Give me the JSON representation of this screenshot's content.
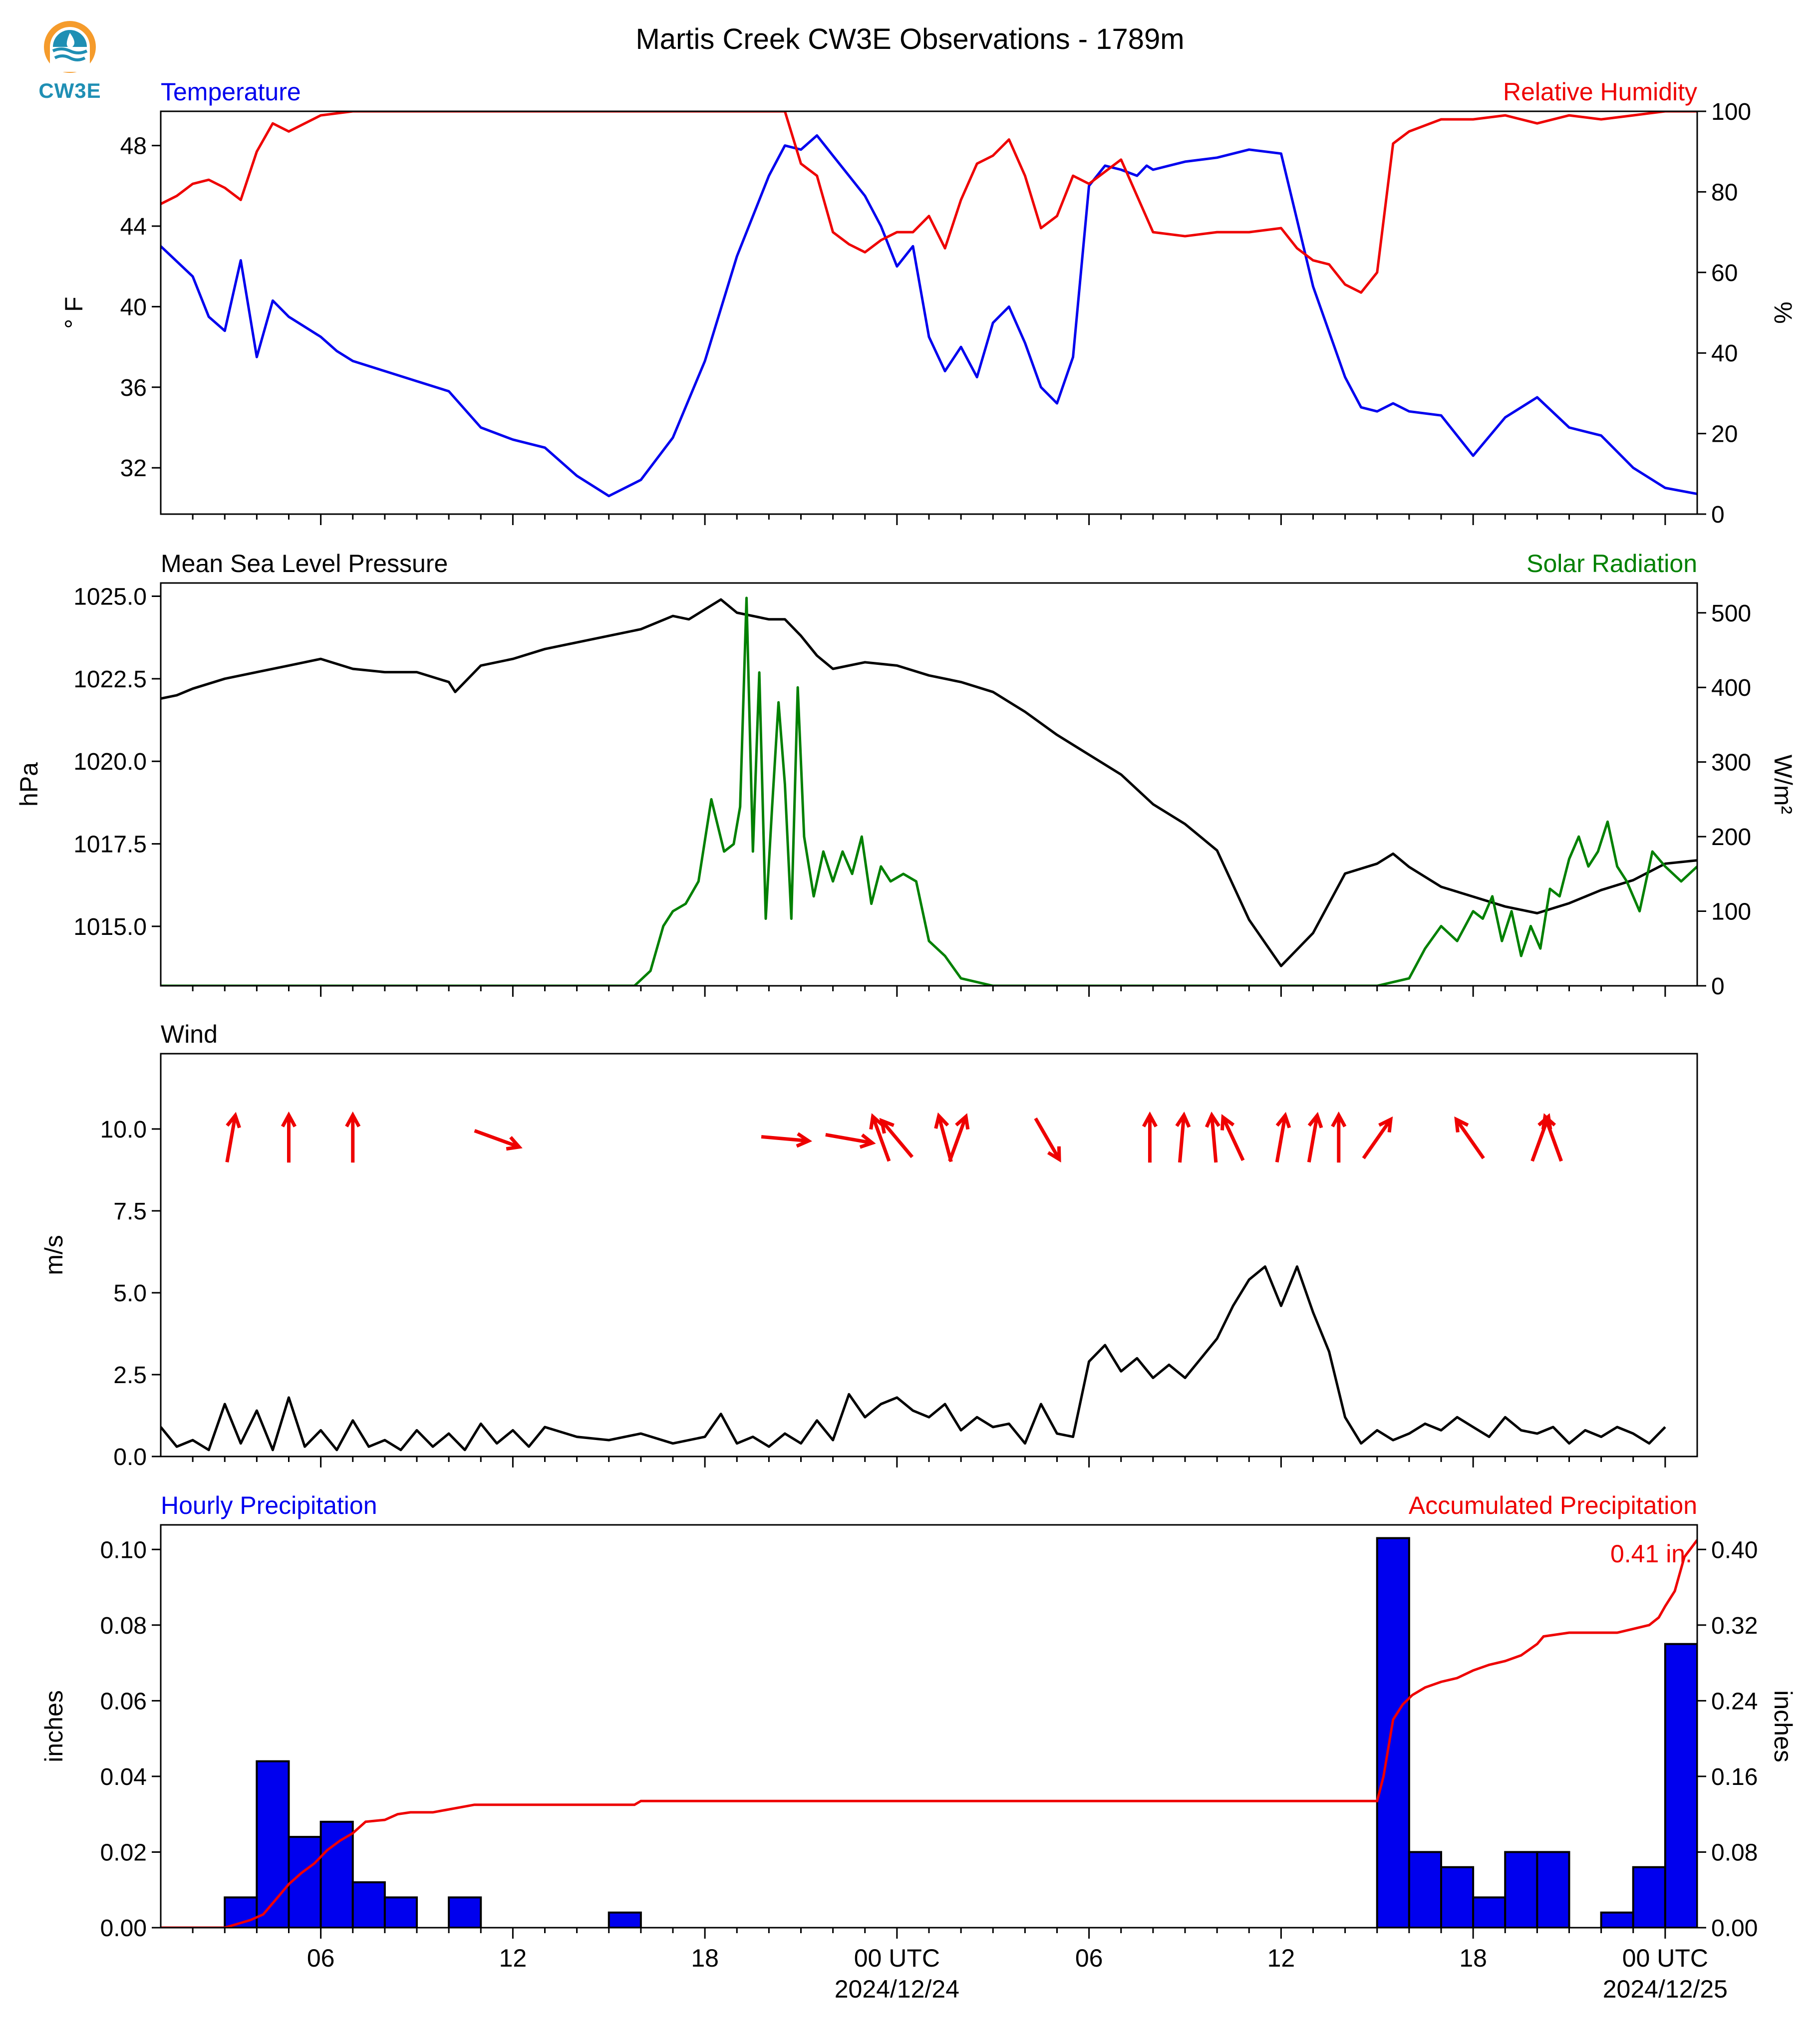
{
  "title": "Martis Creek CW3E Observations - 1789m",
  "logo": {
    "text": "CW3E",
    "ring_color": "#f59b2b",
    "drop_color": "#1f8fb4",
    "icon": "water-drop-logo-icon"
  },
  "time_axis": {
    "ticks": [
      {
        "h": 5,
        "label": "06",
        "date": ""
      },
      {
        "h": 11,
        "label": "12",
        "date": ""
      },
      {
        "h": 17,
        "label": "18",
        "date": ""
      },
      {
        "h": 23,
        "label": "00 UTC",
        "date": "2024/12/24"
      },
      {
        "h": 29,
        "label": "06",
        "date": ""
      },
      {
        "h": 35,
        "label": "12",
        "date": ""
      },
      {
        "h": 41,
        "label": "18",
        "date": ""
      },
      {
        "h": 47,
        "label": "00 UTC",
        "date": "2024/12/25"
      }
    ],
    "xlim_hours": [
      0,
      48
    ]
  },
  "chart_data": [
    {
      "type": "line",
      "panel": "temperature-humidity",
      "left_title": "Temperature",
      "right_title": "Relative Humidity",
      "ylabel_left": "° F",
      "ylabel_right": "%",
      "ylim_left": [
        29.7,
        49.7
      ],
      "ylim_right": [
        0,
        100
      ],
      "yticks_left": [
        "32",
        "36",
        "40",
        "44",
        "48"
      ],
      "yticks_right": [
        "0",
        "20",
        "40",
        "60",
        "80",
        "100"
      ],
      "colors": {
        "left": "#0000ee",
        "right": "#ee0000"
      },
      "series": [
        {
          "name": "Temperature",
          "axis": "left",
          "x": [
            0,
            1,
            1.5,
            2,
            2.5,
            3,
            3.5,
            4,
            4.5,
            5,
            5.5,
            6,
            7,
            8,
            9,
            10,
            11,
            12,
            13,
            14,
            15,
            16,
            17,
            18,
            19,
            19.5,
            20,
            20.5,
            21,
            21.5,
            22,
            22.5,
            23,
            23.5,
            24,
            24.5,
            25,
            25.5,
            26,
            26.5,
            27,
            27.5,
            28,
            28.5,
            29,
            29.5,
            30,
            30.5,
            30.8,
            31,
            31.5,
            32,
            33,
            34,
            35,
            36,
            37,
            37.5,
            38,
            38.5,
            39,
            40,
            41,
            42,
            43,
            44,
            45,
            46,
            47,
            48
          ],
          "values": [
            43,
            41.5,
            39.5,
            38.8,
            42.3,
            37.5,
            40.3,
            39.5,
            39,
            38.5,
            37.8,
            37.3,
            36.8,
            36.3,
            35.8,
            34,
            33.4,
            33,
            31.6,
            30.6,
            31.4,
            33.5,
            37.3,
            42.5,
            46.5,
            48,
            47.8,
            48.5,
            47.5,
            46.5,
            45.5,
            44,
            42,
            43,
            38.5,
            36.8,
            38,
            36.5,
            39.2,
            40,
            38.2,
            36,
            35.2,
            37.5,
            46,
            47,
            46.8,
            46.5,
            47,
            46.8,
            47,
            47.2,
            47.4,
            47.8,
            47.6,
            41,
            36.5,
            35,
            34.8,
            35.2,
            34.8,
            34.6,
            32.6,
            34.5,
            35.5,
            34,
            33.6,
            32,
            31,
            30.7
          ]
        },
        {
          "name": "Relative Humidity",
          "axis": "right",
          "x": [
            0,
            0.5,
            1,
            1.5,
            2,
            2.5,
            3,
            3.5,
            4,
            5,
            6,
            7,
            8,
            9,
            10,
            12,
            14,
            16,
            18,
            19.5,
            20,
            20.5,
            21,
            21.5,
            22,
            22.5,
            23,
            23.5,
            24,
            24.5,
            25,
            25.5,
            26,
            26.5,
            27,
            27.5,
            28,
            28.5,
            29,
            30,
            31,
            32,
            33,
            34,
            35,
            35.5,
            36,
            36.5,
            37,
            37.5,
            38,
            38.5,
            39,
            40,
            41,
            42,
            43,
            44,
            45,
            46,
            47,
            48
          ],
          "values": [
            77,
            79,
            82,
            83,
            81,
            78,
            90,
            97,
            95,
            99,
            100,
            100,
            100,
            100,
            100,
            100,
            100,
            100,
            100,
            100,
            87,
            84,
            70,
            67,
            65,
            68,
            70,
            70,
            74,
            66,
            78,
            87,
            89,
            93,
            84,
            71,
            74,
            84,
            82,
            88,
            70,
            69,
            70,
            70,
            71,
            66,
            63,
            62,
            57,
            55,
            60,
            92,
            95,
            98,
            98,
            99,
            97,
            99,
            98,
            99,
            100,
            100
          ]
        }
      ]
    },
    {
      "type": "line",
      "panel": "pressure-solar",
      "left_title": "Mean Sea Level Pressure",
      "right_title": "Solar Radiation",
      "ylabel_left": "hPa",
      "ylabel_right": "W/m²",
      "ylim_left": [
        1013.2,
        1025.4
      ],
      "ylim_right": [
        0,
        540
      ],
      "yticks_left": [
        "1015.0",
        "1017.5",
        "1020.0",
        "1022.5",
        "1025.0"
      ],
      "yticks_right": [
        "0",
        "100",
        "200",
        "300",
        "400",
        "500"
      ],
      "colors": {
        "left": "#000000",
        "right": "#008000"
      },
      "series": [
        {
          "name": "Mean Sea Level Pressure",
          "axis": "left",
          "x": [
            0,
            0.5,
            1,
            2,
            3,
            4,
            5,
            6,
            7,
            8,
            9,
            9.2,
            10,
            11,
            12,
            13,
            14,
            15,
            16,
            16.5,
            17,
            17.5,
            18,
            19,
            19.5,
            20,
            20.5,
            21,
            22,
            23,
            24,
            25,
            26,
            27,
            28,
            29,
            30,
            31,
            32,
            33,
            34,
            35,
            36,
            37,
            38,
            38.5,
            39,
            40,
            41,
            42,
            43,
            44,
            45,
            46,
            47,
            48
          ],
          "values": [
            1021.9,
            1022,
            1022.2,
            1022.5,
            1022.7,
            1022.9,
            1023.1,
            1022.8,
            1022.7,
            1022.7,
            1022.4,
            1022.1,
            1022.9,
            1023.1,
            1023.4,
            1023.6,
            1023.8,
            1024,
            1024.4,
            1024.3,
            1024.6,
            1024.9,
            1024.5,
            1024.3,
            1024.3,
            1023.8,
            1023.2,
            1022.8,
            1023,
            1022.9,
            1022.6,
            1022.4,
            1022.1,
            1021.5,
            1020.8,
            1020.2,
            1019.6,
            1018.7,
            1018.1,
            1017.3,
            1015.2,
            1013.8,
            1014.8,
            1016.6,
            1016.9,
            1017.2,
            1016.8,
            1016.2,
            1015.9,
            1015.6,
            1015.4,
            1015.7,
            1016.1,
            1016.4,
            1016.9,
            1017
          ]
        },
        {
          "name": "Solar Radiation",
          "axis": "right",
          "x": [
            0,
            14.8,
            15.3,
            15.7,
            16,
            16.4,
            16.8,
            17.2,
            17.6,
            17.9,
            18.1,
            18.3,
            18.5,
            18.7,
            18.9,
            19.1,
            19.3,
            19.5,
            19.7,
            19.9,
            20.1,
            20.4,
            20.7,
            21,
            21.3,
            21.6,
            21.9,
            22.2,
            22.5,
            22.8,
            23.2,
            23.6,
            24,
            24.5,
            25,
            26,
            30,
            38,
            39,
            39.5,
            40,
            40.5,
            41,
            41.3,
            41.6,
            41.9,
            42.2,
            42.5,
            42.8,
            43.1,
            43.4,
            43.7,
            44,
            44.3,
            44.6,
            44.9,
            45.2,
            45.5,
            45.8,
            46.2,
            46.6,
            47,
            47.5,
            48
          ],
          "values": [
            0,
            0,
            20,
            80,
            100,
            110,
            140,
            250,
            180,
            190,
            240,
            520,
            180,
            420,
            90,
            240,
            380,
            270,
            90,
            400,
            200,
            120,
            180,
            140,
            180,
            150,
            200,
            110,
            160,
            140,
            150,
            140,
            60,
            40,
            10,
            0,
            0,
            0,
            10,
            50,
            80,
            60,
            100,
            90,
            120,
            60,
            100,
            40,
            80,
            50,
            130,
            120,
            170,
            200,
            160,
            180,
            220,
            160,
            140,
            100,
            180,
            160,
            140,
            160
          ]
        }
      ]
    },
    {
      "type": "line",
      "panel": "wind",
      "left_title": "Wind",
      "ylabel_left": "m/s",
      "ylim_left": [
        0,
        12.3
      ],
      "yticks_left": [
        "0.0",
        "2.5",
        "5.0",
        "7.5",
        "10.0"
      ],
      "colors": {
        "left": "#000000",
        "arrows": "#ee0000"
      },
      "series": [
        {
          "name": "Wind speed",
          "axis": "left",
          "x": [
            0,
            0.5,
            1,
            1.5,
            2,
            2.5,
            3,
            3.5,
            4,
            4.5,
            5,
            5.5,
            6,
            6.5,
            7,
            7.5,
            8,
            8.5,
            9,
            9.5,
            10,
            10.5,
            11,
            11.5,
            12,
            13,
            14,
            15,
            16,
            17,
            17.5,
            18,
            18.5,
            19,
            19.5,
            20,
            20.5,
            21,
            21.5,
            22,
            22.5,
            23,
            23.5,
            24,
            24.5,
            25,
            25.5,
            26,
            26.5,
            27,
            27.5,
            28,
            28.5,
            29,
            29.5,
            30,
            30.5,
            31,
            31.5,
            32,
            32.5,
            33,
            33.5,
            34,
            34.5,
            35,
            35.5,
            36,
            36.5,
            37,
            37.5,
            38,
            38.5,
            39,
            39.5,
            40,
            40.5,
            41,
            41.5,
            42,
            42.5,
            43,
            43.5,
            44,
            44.5,
            45,
            45.5,
            46,
            46.5,
            47
          ],
          "values": [
            0.9,
            0.3,
            0.5,
            0.2,
            1.6,
            0.4,
            1.4,
            0.2,
            1.8,
            0.3,
            0.8,
            0.2,
            1.1,
            0.3,
            0.5,
            0.2,
            0.8,
            0.3,
            0.7,
            0.2,
            1,
            0.4,
            0.8,
            0.3,
            0.9,
            0.6,
            0.5,
            0.7,
            0.4,
            0.6,
            1.3,
            0.4,
            0.6,
            0.3,
            0.7,
            0.4,
            1.1,
            0.5,
            1.9,
            1.2,
            1.6,
            1.8,
            1.4,
            1.2,
            1.6,
            0.8,
            1.2,
            0.9,
            1,
            0.4,
            1.6,
            0.7,
            0.6,
            2.9,
            3.4,
            2.6,
            3,
            2.4,
            2.8,
            2.4,
            3,
            3.6,
            4.6,
            5.4,
            5.8,
            4.6,
            5.8,
            4.4,
            3.2,
            1.2,
            0.4,
            0.8,
            0.5,
            0.7,
            1,
            0.8,
            1.2,
            0.9,
            0.6,
            1.2,
            0.8,
            0.7,
            0.9,
            0.4,
            0.8,
            0.6,
            0.9,
            0.7,
            0.4,
            0.9
          ]
        }
      ],
      "wind_arrows": [
        {
          "h": 2.2,
          "dir": 190
        },
        {
          "h": 4.0,
          "dir": 180
        },
        {
          "h": 6.0,
          "dir": 180
        },
        {
          "h": 10.5,
          "dir": 290
        },
        {
          "h": 19.5,
          "dir": 275
        },
        {
          "h": 21.5,
          "dir": 280
        },
        {
          "h": 22.5,
          "dir": 160
        },
        {
          "h": 23.0,
          "dir": 140
        },
        {
          "h": 24.5,
          "dir": 165
        },
        {
          "h": 24.9,
          "dir": 200
        },
        {
          "h": 27.7,
          "dir": 330
        },
        {
          "h": 30.9,
          "dir": 180
        },
        {
          "h": 31.9,
          "dir": 185
        },
        {
          "h": 32.9,
          "dir": 175
        },
        {
          "h": 33.5,
          "dir": 155
        },
        {
          "h": 35.0,
          "dir": 190
        },
        {
          "h": 36.0,
          "dir": 190
        },
        {
          "h": 36.8,
          "dir": 180
        },
        {
          "h": 38.0,
          "dir": 215
        },
        {
          "h": 40.9,
          "dir": 145
        },
        {
          "h": 43.1,
          "dir": 200
        },
        {
          "h": 43.5,
          "dir": 160
        }
      ]
    },
    {
      "type": "bar",
      "panel": "precipitation",
      "left_title": "Hourly Precipitation",
      "right_title": "Accumulated Precipitation",
      "ylabel_left": "inches",
      "ylabel_right": "inches",
      "ylim_left": [
        0,
        0.1065
      ],
      "ylim_right": [
        0,
        0.426
      ],
      "yticks_left": [
        "0.00",
        "0.02",
        "0.04",
        "0.06",
        "0.08",
        "0.10"
      ],
      "yticks_right": [
        "0.00",
        "0.08",
        "0.16",
        "0.24",
        "0.32",
        "0.40"
      ],
      "annotation": "0.41 in.",
      "colors": {
        "bars": "#0000ee",
        "line": "#ee0000"
      },
      "series": [
        {
          "name": "Hourly Precipitation",
          "axis": "left",
          "type": "bar",
          "x": [
            2,
            3,
            4,
            5,
            6,
            7,
            9,
            14,
            38,
            39,
            40,
            41,
            42,
            43,
            45,
            46,
            47
          ],
          "values": [
            0.008,
            0.044,
            0.024,
            0.028,
            0.012,
            0.008,
            0.008,
            0.004,
            0.103,
            0.02,
            0.016,
            0.008,
            0.02,
            0.02,
            0.004,
            0.016,
            0.075
          ]
        },
        {
          "name": "Accumulated Precipitation",
          "axis": "right",
          "type": "line",
          "x": [
            0,
            2,
            2.8,
            3.2,
            3.6,
            4,
            4.4,
            4.8,
            5.2,
            5.6,
            6,
            6.4,
            7,
            7.4,
            7.8,
            8.5,
            9.8,
            10,
            14.8,
            15,
            38,
            38.2,
            38.5,
            38.8,
            39.1,
            39.5,
            40,
            40.5,
            41,
            41.5,
            42,
            42.5,
            43,
            43.2,
            44,
            45,
            45.5,
            46,
            46.5,
            46.8,
            47,
            47.3,
            47.6,
            48
          ],
          "values": [
            0,
            0,
            0.008,
            0.014,
            0.03,
            0.046,
            0.058,
            0.068,
            0.082,
            0.092,
            0.1,
            0.112,
            0.114,
            0.12,
            0.122,
            0.122,
            0.13,
            0.13,
            0.13,
            0.134,
            0.134,
            0.16,
            0.22,
            0.236,
            0.246,
            0.254,
            0.26,
            0.264,
            0.272,
            0.278,
            0.282,
            0.288,
            0.3,
            0.308,
            0.312,
            0.312,
            0.312,
            0.316,
            0.32,
            0.328,
            0.34,
            0.356,
            0.392,
            0.41
          ]
        }
      ]
    }
  ]
}
